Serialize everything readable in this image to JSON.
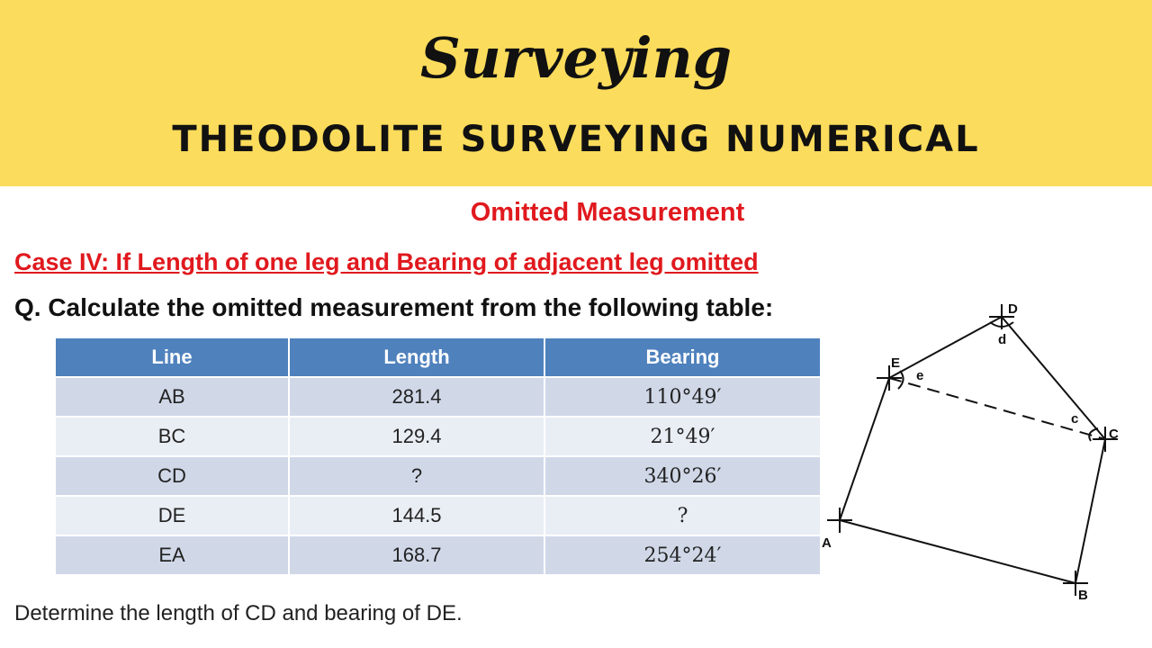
{
  "header": {
    "title": "Surveying",
    "subtitle": "THEODOLITE SURVEYING NUMERICAL"
  },
  "section_title": "Omitted Measurement",
  "case": "Case IV: If Length of one leg and Bearing of adjacent leg omitted",
  "question": "Q. Calculate the omitted measurement from the following table:",
  "table": {
    "headers": [
      "Line",
      "Length",
      "Bearing"
    ],
    "rows": [
      [
        "AB",
        "281.4",
        "110°49′"
      ],
      [
        "BC",
        "129.4",
        "21°49′"
      ],
      [
        "CD",
        "?",
        "340°26′"
      ],
      [
        "DE",
        "144.5",
        "?"
      ],
      [
        "EA",
        "168.7",
        "254°24′"
      ]
    ]
  },
  "note": "Determine the length of CD and bearing of DE.",
  "diagram": {
    "stations": [
      "A",
      "B",
      "C",
      "D",
      "E"
    ],
    "angles": [
      "c",
      "d",
      "e"
    ]
  }
}
